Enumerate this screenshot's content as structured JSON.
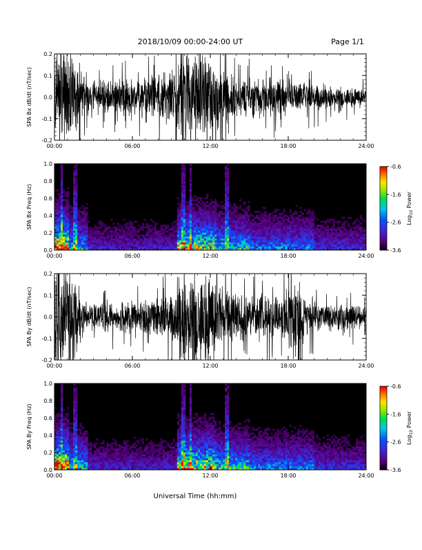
{
  "header": {
    "title": "2018/10/09   00:00-24:00 UT",
    "page": "Page 1/1"
  },
  "x_axis_label": "Universal Time (hh:mm)",
  "colorbar": {
    "label": "Log10 Power",
    "label_base": "Log",
    "label_sub": "10",
    "label_rest": " Power",
    "ticks": [
      "-0.6",
      "-1.6",
      "-2.6",
      "-3.6"
    ],
    "range": [
      -3.6,
      -0.6
    ]
  },
  "chart_data": [
    {
      "type": "line",
      "panel": "bx_wave",
      "ylabel": "SPA Bx dB/dt (nT/sec)",
      "xlim": [
        "00:00",
        "24:00"
      ],
      "ylim": [
        -0.2,
        0.2
      ],
      "xticks": [
        "00:00",
        "06:00",
        "12:00",
        "18:00",
        "24:00"
      ],
      "yticks": [
        "0.2",
        "0.1",
        "0.0",
        "-0.1",
        "-0.2"
      ],
      "activity_envelope_hours": [
        [
          0,
          0.22
        ],
        [
          1.5,
          0.2
        ],
        [
          2.5,
          0.07
        ],
        [
          5.5,
          0.08
        ],
        [
          7,
          0.09
        ],
        [
          9.2,
          0.12
        ],
        [
          9.8,
          0.22
        ],
        [
          12,
          0.18
        ],
        [
          14,
          0.09
        ],
        [
          17.5,
          0.08
        ],
        [
          19,
          0.06
        ],
        [
          24,
          0.04
        ]
      ]
    },
    {
      "type": "heatmap",
      "panel": "bx_spectrogram",
      "ylabel": "SPA Bx Freq (Hz)",
      "xlim": [
        "00:00",
        "24:00"
      ],
      "ylim": [
        0.0,
        1.0
      ],
      "xticks": [
        "00:00",
        "06:00",
        "12:00",
        "18:00",
        "24:00"
      ],
      "yticks": [
        "1.0",
        "0.8",
        "0.6",
        "0.4",
        "0.2",
        "0.0"
      ],
      "zlim": [
        -3.6,
        -0.6
      ]
    },
    {
      "type": "line",
      "panel": "by_wave",
      "ylabel": "SPA By dB/dt (nT/sec)",
      "xlim": [
        "00:00",
        "24:00"
      ],
      "ylim": [
        -0.2,
        0.2
      ],
      "xticks": [
        "00:00",
        "06:00",
        "12:00",
        "18:00",
        "24:00"
      ],
      "yticks": [
        "0.2",
        "0.1",
        "0.0",
        "-0.1",
        "-0.2"
      ],
      "activity_envelope_hours": [
        [
          0,
          0.22
        ],
        [
          1.5,
          0.2
        ],
        [
          2.5,
          0.06
        ],
        [
          5.5,
          0.07
        ],
        [
          7,
          0.08
        ],
        [
          9.2,
          0.1
        ],
        [
          9.8,
          0.22
        ],
        [
          12,
          0.2
        ],
        [
          14,
          0.1
        ],
        [
          17.5,
          0.09
        ],
        [
          18.5,
          0.2
        ],
        [
          19.5,
          0.07
        ],
        [
          24,
          0.05
        ]
      ]
    },
    {
      "type": "heatmap",
      "panel": "by_spectrogram",
      "ylabel": "SPA By Freq (Hz)",
      "xlim": [
        "00:00",
        "24:00"
      ],
      "ylim": [
        0.0,
        1.0
      ],
      "xticks": [
        "00:00",
        "06:00",
        "12:00",
        "18:00",
        "24:00"
      ],
      "yticks": [
        "1.0",
        "0.8",
        "0.6",
        "0.4",
        "0.2",
        "0.0"
      ],
      "zlim": [
        -3.6,
        -0.6
      ]
    }
  ]
}
